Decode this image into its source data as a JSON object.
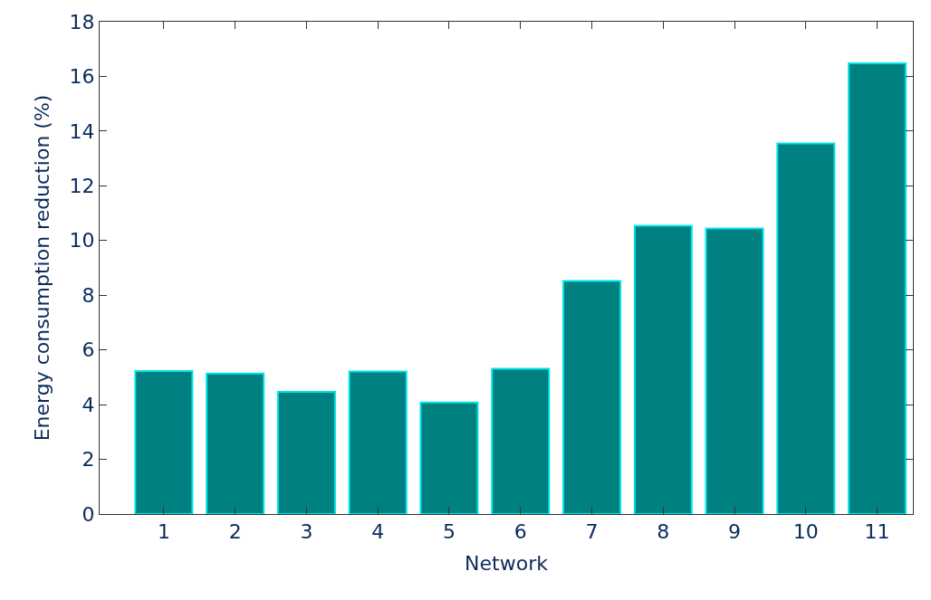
{
  "chart_data": {
    "type": "bar",
    "xlabel": "Network",
    "ylabel": "Energy consumption reduction (%)",
    "categories": [
      "1",
      "2",
      "3",
      "4",
      "5",
      "6",
      "7",
      "8",
      "9",
      "10",
      "11"
    ],
    "values": [
      5.23,
      5.14,
      4.47,
      5.21,
      4.08,
      5.31,
      8.52,
      10.54,
      10.44,
      13.55,
      16.48
    ],
    "color": "#008080",
    "ylim": [
      0,
      18
    ],
    "yticks": [
      0,
      2,
      4,
      6,
      8,
      10,
      12,
      14,
      16,
      18
    ]
  }
}
